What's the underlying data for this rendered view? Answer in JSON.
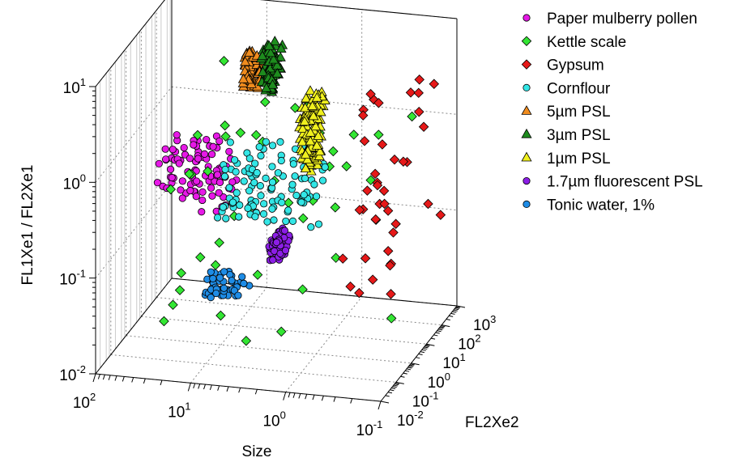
{
  "chart_data": {
    "type": "scatter",
    "projection": "3d",
    "log_scale": {
      "x": true,
      "y": true,
      "z": true
    },
    "title": "",
    "xlabel": "Size",
    "ylabel": "FL2Xe2",
    "zlabel": "FL1Xe1 / FL2Xe1",
    "xlim": [
      0.1,
      100
    ],
    "ylim": [
      0.01,
      1000
    ],
    "zlim": [
      0.01,
      10
    ],
    "x_ticks": [
      {
        "base": "10",
        "exp": "2"
      },
      {
        "base": "10",
        "exp": "1"
      },
      {
        "base": "10",
        "exp": "0"
      },
      {
        "base": "10",
        "exp": "-1"
      }
    ],
    "y_ticks": [
      {
        "base": "10",
        "exp": "-2"
      },
      {
        "base": "10",
        "exp": "-1"
      },
      {
        "base": "10",
        "exp": "0"
      },
      {
        "base": "10",
        "exp": "1"
      },
      {
        "base": "10",
        "exp": "2"
      },
      {
        "base": "10",
        "exp": "3"
      }
    ],
    "z_ticks": [
      {
        "base": "10",
        "exp": "-2"
      },
      {
        "base": "10",
        "exp": "-1"
      },
      {
        "base": "10",
        "exp": "0"
      },
      {
        "base": "10",
        "exp": "1"
      }
    ],
    "grid": true,
    "legend_position": "right",
    "series": [
      {
        "name": "Paper mulberry pollen",
        "marker": "circle",
        "color": "#e619e6",
        "clusters": [
          {
            "size": [
              8,
              40
            ],
            "fl2xe2": [
              0.3,
              3
            ],
            "ratio": [
              0.3,
              1.2
            ],
            "count": 90
          }
        ]
      },
      {
        "name": "Kettle scale",
        "marker": "diamond",
        "color": "#33e633",
        "clusters": [
          {
            "size": [
              0.1,
              30
            ],
            "fl2xe2": [
              0.01,
              100
            ],
            "ratio": [
              0.02,
              5
            ],
            "count": 45
          }
        ]
      },
      {
        "name": "Gypsum",
        "marker": "diamond",
        "color": "#e61919",
        "clusters": [
          {
            "size": [
              0.1,
              0.5
            ],
            "fl2xe2": [
              0.1,
              100
            ],
            "ratio": [
              0.05,
              8
            ],
            "count": 40
          }
        ]
      },
      {
        "name": "Cornflour",
        "marker": "circle",
        "color": "#33e6e6",
        "clusters": [
          {
            "size": [
              1,
              10
            ],
            "fl2xe2": [
              0.5,
              5
            ],
            "ratio": [
              0.2,
              1.2
            ],
            "count": 110
          }
        ]
      },
      {
        "name": "5µm PSL",
        "marker": "triangle",
        "color": "#f08c1e",
        "clusters": [
          {
            "size": [
              4,
              6
            ],
            "fl2xe2": [
              1,
              2
            ],
            "ratio": [
              5,
              12
            ],
            "count": 60
          }
        ]
      },
      {
        "name": "3µm PSL",
        "marker": "triangle",
        "color": "#1e8c1e",
        "clusters": [
          {
            "size": [
              2.5,
              3.5
            ],
            "fl2xe2": [
              0.5,
              2
            ],
            "ratio": [
              5,
              15
            ],
            "count": 90
          }
        ]
      },
      {
        "name": "1µm PSL",
        "marker": "triangle",
        "color": "#f0f01e",
        "clusters": [
          {
            "size": [
              0.8,
              1.2
            ],
            "fl2xe2": [
              0.2,
              1
            ],
            "ratio": [
              1,
              6
            ],
            "count": 110
          }
        ]
      },
      {
        "name": "1.7µm fluorescent PSL",
        "marker": "circle",
        "color": "#8c1ee6",
        "clusters": [
          {
            "size": [
              1.5,
              2
            ],
            "fl2xe2": [
              0.05,
              0.3
            ],
            "ratio": [
              0.15,
              0.25
            ],
            "count": 80
          }
        ]
      },
      {
        "name": "Tonic water, 1%",
        "marker": "circle",
        "color": "#1e8ce6",
        "clusters": [
          {
            "size": [
              3,
              8
            ],
            "fl2xe2": [
              0.01,
              0.05
            ],
            "ratio": [
              0.08,
              0.12
            ],
            "count": 50
          }
        ]
      }
    ]
  }
}
